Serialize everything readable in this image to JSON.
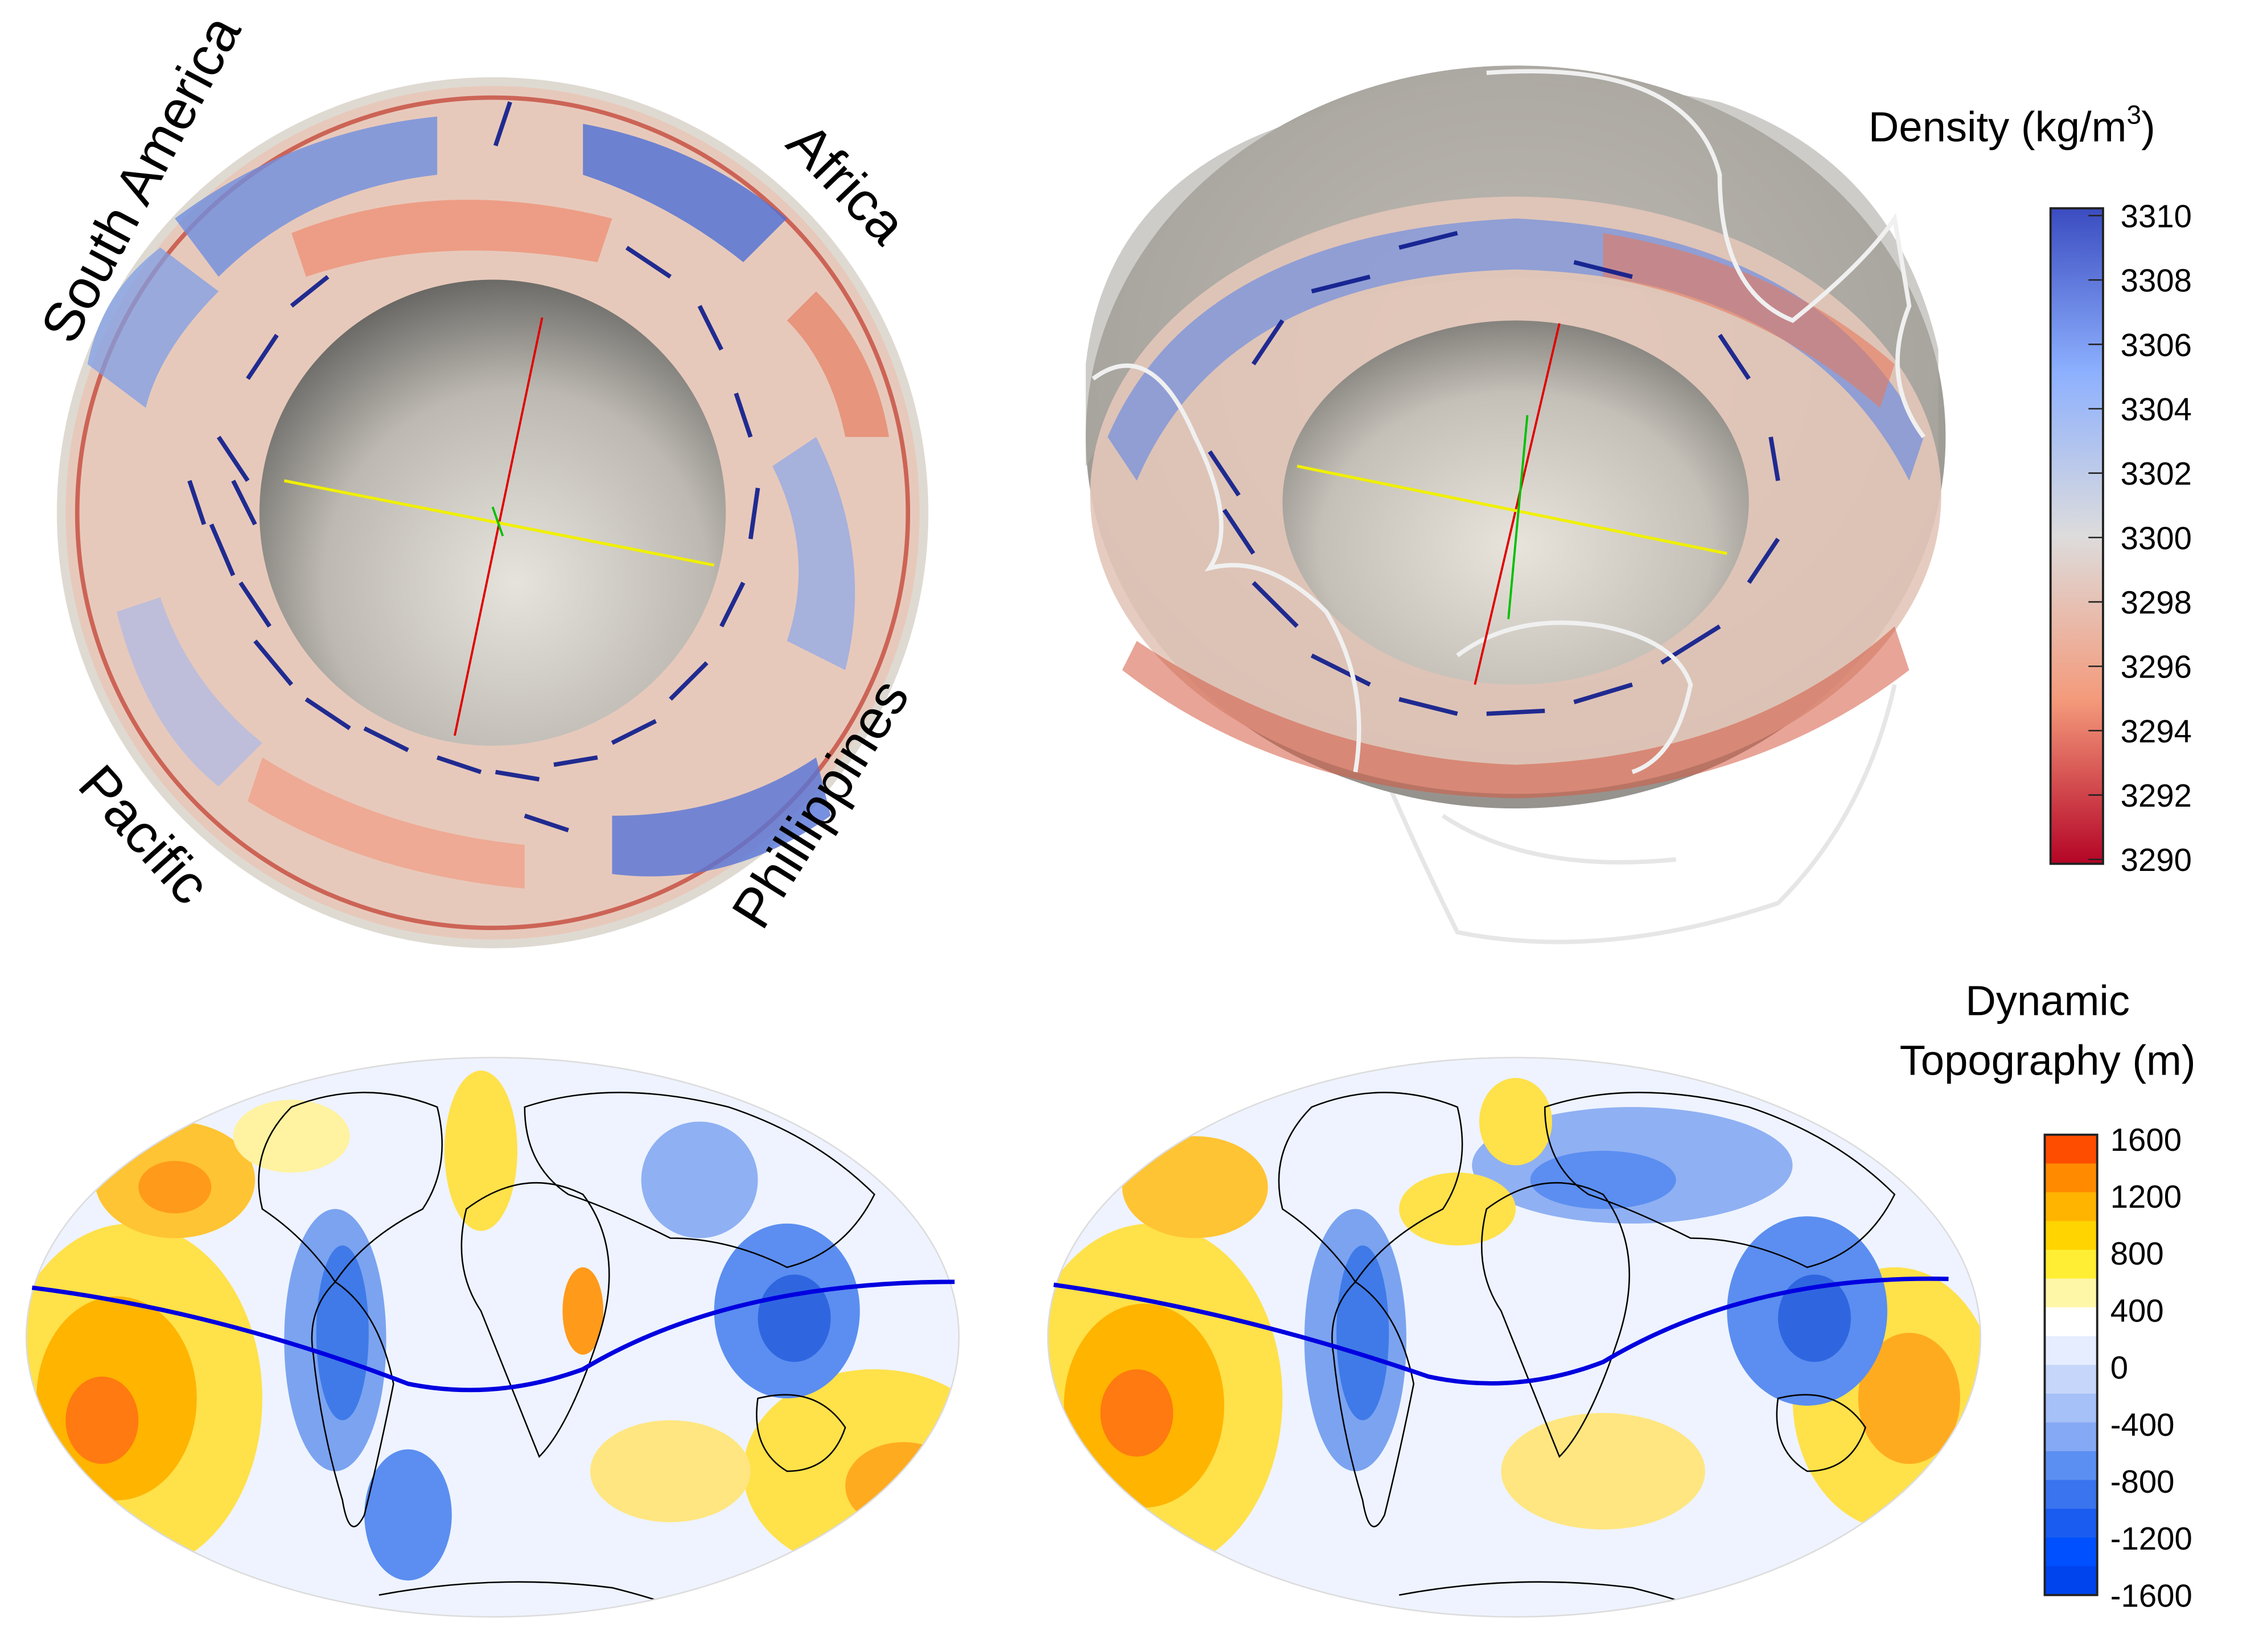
{
  "panels": {
    "top_left": {
      "labels": [
        "South America",
        "Africa",
        "Pacific",
        "Phillippines"
      ]
    }
  },
  "density_colorbar": {
    "title_main": "Density (kg/m",
    "title_sup": "3",
    "title_close": ")",
    "ticks": [
      "3310",
      "3308",
      "3306",
      "3304",
      "3302",
      "3300",
      "3298",
      "3296",
      "3294",
      "3292",
      "3290"
    ],
    "colors": {
      "high": "#3b4cc0",
      "mid": "#dcdcdc",
      "low": "#b40426"
    }
  },
  "topo_colorbar": {
    "title_line1": "Dynamic",
    "title_line2": "Topography (m)",
    "ticks": [
      "1600",
      "1200",
      "800",
      "400",
      "0",
      "-400",
      "-800",
      "-1200",
      "-1600"
    ],
    "colors": {
      "high": "#ff4000",
      "mid": "#ffffff",
      "low": "#0050ff"
    }
  }
}
